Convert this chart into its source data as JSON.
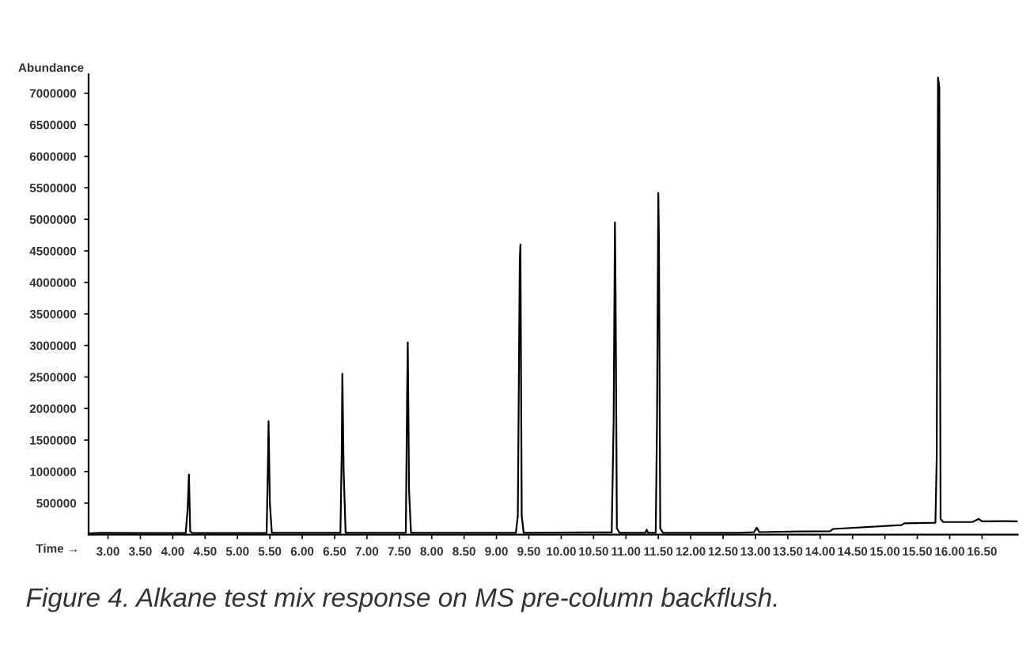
{
  "chart_data": {
    "type": "line",
    "ylabel": "Abundance",
    "xlabel": "Time →",
    "annotations": [
      "Figure 4. Alkane test mix response on MS pre-column backflush."
    ],
    "xlim": [
      2.7,
      17.05
    ],
    "ylim": [
      0,
      7300000
    ],
    "xticks": [
      {
        "value": 3,
        "label": "3.00"
      },
      {
        "value": 3.5,
        "label": "3.50"
      },
      {
        "value": 4,
        "label": "4.00"
      },
      {
        "value": 4.5,
        "label": "4.50"
      },
      {
        "value": 5,
        "label": "5.00"
      },
      {
        "value": 5.5,
        "label": "5.50"
      },
      {
        "value": 6,
        "label": "6.00"
      },
      {
        "value": 6.5,
        "label": "6.50"
      },
      {
        "value": 7,
        "label": "7.00"
      },
      {
        "value": 7.5,
        "label": "7.50"
      },
      {
        "value": 8,
        "label": "8.00"
      },
      {
        "value": 8.5,
        "label": "8.50"
      },
      {
        "value": 9,
        "label": "9.00"
      },
      {
        "value": 9.5,
        "label": "9.50"
      },
      {
        "value": 10,
        "label": "10.00"
      },
      {
        "value": 10.5,
        "label": "10.50"
      },
      {
        "value": 11,
        "label": "11.00"
      },
      {
        "value": 11.5,
        "label": "11.50"
      },
      {
        "value": 12,
        "label": "12.00"
      },
      {
        "value": 12.5,
        "label": "12.50"
      },
      {
        "value": 13,
        "label": "13.00"
      },
      {
        "value": 13.5,
        "label": "13.50"
      },
      {
        "value": 14,
        "label": "14.00"
      },
      {
        "value": 14.5,
        "label": "14.50"
      },
      {
        "value": 15,
        "label": "15.00"
      },
      {
        "value": 15.5,
        "label": "15.50"
      },
      {
        "value": 16,
        "label": "16.00"
      },
      {
        "value": 16.5,
        "label": "16.50"
      }
    ],
    "yticks": [
      500000,
      1000000,
      1500000,
      2000000,
      2500000,
      3000000,
      3500000,
      4000000,
      4500000,
      5000000,
      5500000,
      6000000,
      6500000,
      7000000
    ],
    "grid": false,
    "legend": false,
    "marker": "none",
    "line_style": "solid",
    "series": [
      {
        "color": "#000000",
        "x": [
          2.7,
          2.9,
          3.5,
          4.2,
          4.23,
          4.25,
          4.27,
          4.3,
          5.0,
          5.45,
          5.47,
          5.48,
          5.5,
          5.53,
          6.2,
          6.59,
          6.61,
          6.62,
          6.64,
          6.67,
          7.3,
          7.6,
          7.62,
          7.63,
          7.65,
          7.68,
          8.5,
          9.3,
          9.33,
          9.36,
          9.37,
          9.39,
          9.42,
          10.4,
          10.78,
          10.81,
          10.83,
          10.84,
          10.86,
          10.9,
          11.3,
          11.32,
          11.34,
          11.46,
          11.48,
          11.5,
          11.51,
          11.53,
          11.57,
          12.75,
          12.98,
          13.02,
          13.06,
          13.7,
          14.15,
          14.2,
          15.25,
          15.3,
          15.78,
          15.8,
          15.82,
          15.84,
          15.86,
          15.9,
          16.35,
          16.45,
          16.5,
          16.85,
          17.05
        ],
        "values": [
          20000,
          30000,
          25000,
          25000,
          400000,
          950000,
          50000,
          25000,
          25000,
          25000,
          1100000,
          1800000,
          500000,
          30000,
          30000,
          30000,
          1300000,
          2550000,
          1000000,
          30000,
          30000,
          30000,
          2200000,
          3050000,
          700000,
          30000,
          30000,
          30000,
          300000,
          4350000,
          4600000,
          300000,
          30000,
          35000,
          35000,
          1800000,
          4950000,
          3800000,
          100000,
          30000,
          30000,
          80000,
          30000,
          30000,
          1800000,
          5420000,
          4600000,
          100000,
          30000,
          30000,
          40000,
          110000,
          40000,
          50000,
          55000,
          90000,
          150000,
          180000,
          190000,
          1200000,
          7250000,
          7100000,
          250000,
          200000,
          200000,
          250000,
          210000,
          215000,
          210000
        ]
      }
    ]
  }
}
